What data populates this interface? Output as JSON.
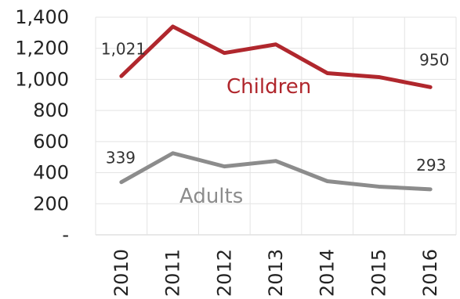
{
  "chart_data": {
    "type": "line",
    "x": [
      "2010",
      "2011",
      "2012",
      "2013",
      "2014",
      "2015",
      "2016"
    ],
    "ylim": [
      0,
      1400
    ],
    "yticks": [
      0,
      200,
      400,
      600,
      800,
      1000,
      1200,
      1400
    ],
    "ytick_labels": [
      "-",
      "200",
      "400",
      "600",
      "800",
      "1,000",
      "1,200",
      "1,400"
    ],
    "grid": true,
    "series": [
      {
        "name": "Children",
        "color": "#b0272d",
        "values": [
          1021,
          1340,
          1170,
          1225,
          1040,
          1015,
          950
        ],
        "start_label": "1,021",
        "end_label": "950"
      },
      {
        "name": "Adults",
        "color": "#8c8c8c",
        "values": [
          339,
          525,
          440,
          475,
          345,
          310,
          293
        ],
        "start_label": "339",
        "end_label": "293"
      }
    ]
  }
}
